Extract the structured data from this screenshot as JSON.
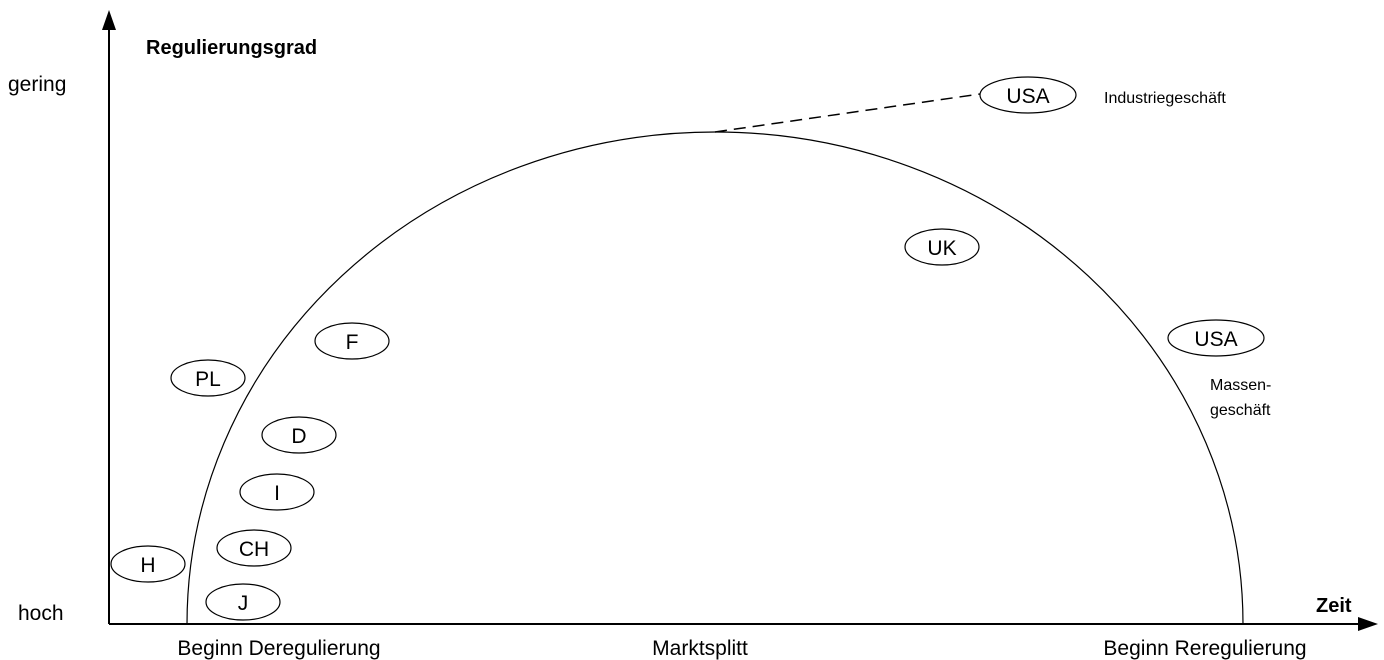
{
  "y_axis": {
    "title": "Regulierungsgrad",
    "top_label": "gering",
    "bottom_label": "hoch"
  },
  "x_axis": {
    "title": "Zeit",
    "labels": [
      "Beginn Deregulierung",
      "Marktsplitt",
      "Beginn Reregulierung"
    ]
  },
  "countries": {
    "usa_industry": "USA",
    "uk": "UK",
    "usa_mass": "USA",
    "f": "F",
    "pl": "PL",
    "d": "D",
    "i": "I",
    "ch": "CH",
    "h": "H",
    "j": "J"
  },
  "notes": {
    "industry": "Industriegeschäft",
    "mass_line1": "Massen-",
    "mass_line2": "geschäft"
  }
}
